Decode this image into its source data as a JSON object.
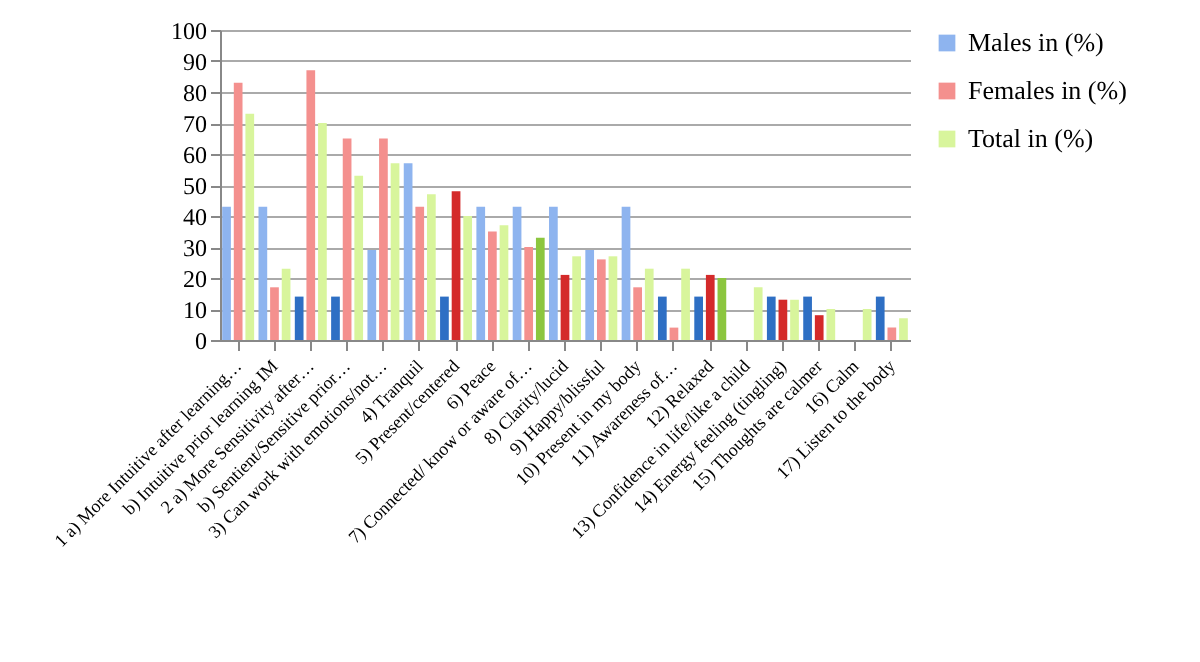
{
  "chart_data": {
    "type": "bar",
    "categories": [
      "1 a) More Intuitive after learning…",
      "b) Intuitive prior learning IM",
      "2 a) More Sensitivity after…",
      "b) Sentient/Sensitive prior…",
      "3) Can work with emotions/not…",
      "4) Tranquil",
      "5) Present/centered",
      "6) Peace",
      "7) Connected/ know or aware of…",
      "8) Clarity/lucid",
      "9) Happy/blissful",
      "10) Present in my body",
      "11) Awareness of…",
      "12) Relaxed",
      "13) Confidence in life/like a child",
      "14) Energy feeling (tingling)",
      "15) Thoughts are calmer",
      "16) Calm",
      "17) Listen to the body"
    ],
    "series": [
      {
        "name": "Males in (%)",
        "color": "#8eb4ef",
        "colors": [
          "#8eb4ef",
          "#8eb4ef",
          "#2e6fc4",
          "#2e6fc4",
          "#8eb4ef",
          "#8eb4ef",
          "#2e6fc4",
          "#8eb4ef",
          "#8eb4ef",
          "#8eb4ef",
          "#8eb4ef",
          "#8eb4ef",
          "#2e6fc4",
          "#2e6fc4",
          "#8eb4ef",
          "#2e6fc4",
          "#2e6fc4",
          "#8eb4ef",
          "#2e6fc4"
        ],
        "values": [
          43,
          43,
          14,
          14,
          29,
          57,
          14,
          43,
          43,
          43,
          29,
          43,
          14,
          14,
          0,
          14,
          14,
          0,
          14
        ]
      },
      {
        "name": "Females in (%)",
        "color": "#f4908e",
        "colors": [
          "#f4908e",
          "#f4908e",
          "#f4908e",
          "#f4908e",
          "#f4908e",
          "#f4908e",
          "#d42a2a",
          "#f4908e",
          "#f4908e",
          "#d42a2a",
          "#f4908e",
          "#f4908e",
          "#f4908e",
          "#d42a2a",
          "#f4908e",
          "#d42a2a",
          "#d42a2a",
          "#f4908e",
          "#f4908e"
        ],
        "values": [
          83,
          17,
          87,
          65,
          65,
          43,
          48,
          35,
          30,
          21,
          26,
          17,
          4,
          21,
          0,
          13,
          8,
          0,
          4
        ]
      },
      {
        "name": "Total in (%)",
        "color": "#d8f59c",
        "colors": [
          "#d8f59c",
          "#d8f59c",
          "#d8f59c",
          "#d8f59c",
          "#d8f59c",
          "#d8f59c",
          "#d8f59c",
          "#d8f59c",
          "#8cc63f",
          "#d8f59c",
          "#d8f59c",
          "#d8f59c",
          "#d8f59c",
          "#8cc63f",
          "#d8f59c",
          "#d8f59c",
          "#d8f59c",
          "#d8f59c",
          "#d8f59c"
        ],
        "values": [
          73,
          23,
          70,
          53,
          57,
          47,
          40,
          37,
          33,
          27,
          27,
          23,
          23,
          20,
          17,
          13,
          10,
          10,
          7
        ]
      }
    ],
    "ylim": [
      0,
      100
    ],
    "yticks": [
      0,
      10,
      20,
      30,
      40,
      50,
      60,
      70,
      80,
      90,
      100
    ],
    "grid": "y",
    "legend": "right"
  }
}
